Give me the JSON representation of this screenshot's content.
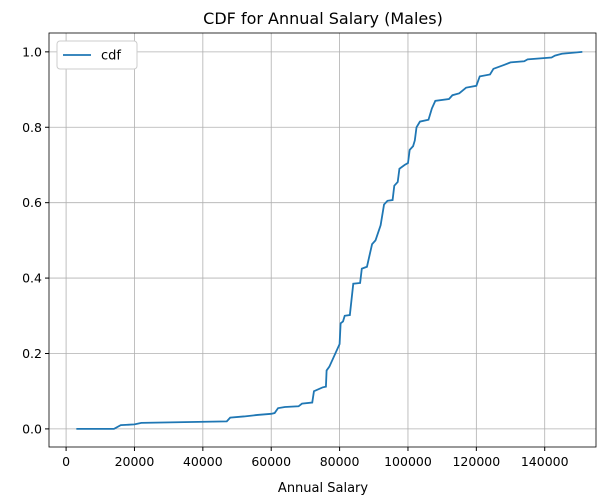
{
  "chart_data": {
    "type": "line",
    "title": "CDF for Annual Salary (Males)",
    "xlabel": "Annual Salary",
    "x": [
      3000,
      14000,
      16000,
      20000,
      22000,
      47000,
      48000,
      52000,
      56000,
      60000,
      61000,
      62000,
      64000,
      68000,
      69000,
      72000,
      72500,
      75000,
      76000,
      76200,
      77000,
      80000,
      80300,
      81000,
      81500,
      83000,
      84000,
      86000,
      86500,
      88000,
      89500,
      90500,
      92000,
      93000,
      94000,
      95500,
      96000,
      97000,
      97500,
      99000,
      100000,
      100500,
      101500,
      102000,
      102500,
      103500,
      106000,
      107000,
      108000,
      112000,
      113000,
      115000,
      117000,
      120000,
      121000,
      124000,
      125000,
      128000,
      130000,
      134000,
      135000,
      142000,
      143000,
      145000,
      151000
    ],
    "series": [
      {
        "name": "cdf",
        "color": "#1f77b4",
        "values": [
          0,
          0,
          0.01,
          0.012,
          0.016,
          0.02,
          0.03,
          0.033,
          0.037,
          0.04,
          0.042,
          0.055,
          0.058,
          0.06,
          0.067,
          0.07,
          0.1,
          0.11,
          0.112,
          0.155,
          0.165,
          0.225,
          0.28,
          0.285,
          0.3,
          0.302,
          0.385,
          0.387,
          0.425,
          0.43,
          0.49,
          0.5,
          0.54,
          0.595,
          0.605,
          0.607,
          0.645,
          0.655,
          0.69,
          0.7,
          0.705,
          0.74,
          0.75,
          0.765,
          0.8,
          0.815,
          0.82,
          0.85,
          0.87,
          0.875,
          0.885,
          0.89,
          0.905,
          0.91,
          0.935,
          0.94,
          0.955,
          0.965,
          0.972,
          0.975,
          0.98,
          0.985,
          0.99,
          0.995,
          1.0
        ]
      }
    ],
    "xlim": [
      -5000,
      155000
    ],
    "ylim": [
      -0.048,
      1.05
    ],
    "xticks": [
      0,
      20000,
      40000,
      60000,
      80000,
      100000,
      120000,
      140000
    ],
    "yticks": [
      {
        "value": 0,
        "label": "0.0"
      },
      {
        "value": 0.2,
        "label": "0.2"
      },
      {
        "value": 0.4,
        "label": "0.4"
      },
      {
        "value": 0.6,
        "label": "0.6"
      },
      {
        "value": 0.8,
        "label": "0.8"
      },
      {
        "value": 1,
        "label": "1.0"
      }
    ],
    "grid": true,
    "legend": "upper left"
  }
}
